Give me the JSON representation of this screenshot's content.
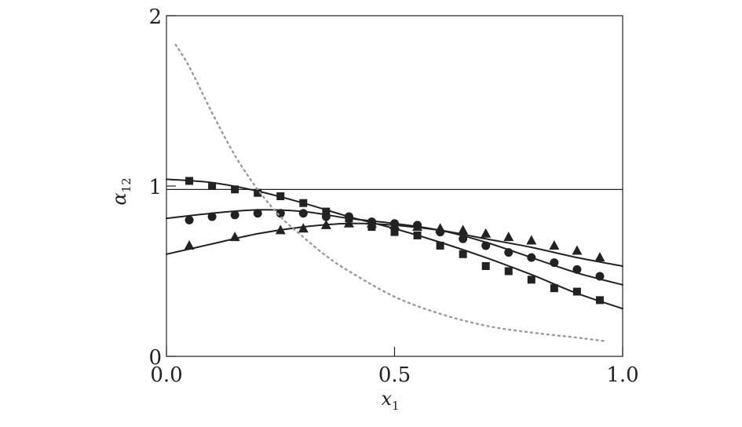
{
  "chart_data": {
    "type": "line",
    "xlabel": {
      "main": "x",
      "sub": "1"
    },
    "ylabel": {
      "main": "α",
      "sub": "12"
    },
    "xlim": [
      0,
      1
    ],
    "ylim": [
      0,
      2
    ],
    "x_ticks": [
      "0.0",
      "0.5",
      "1.0"
    ],
    "y_ticks": [
      "0",
      "1",
      "2"
    ],
    "reference_line_y": 0.98,
    "grid": false,
    "legend": "none",
    "series": [
      {
        "marker": "square",
        "fit": [
          [
            0,
            1.04
          ],
          [
            0.1,
            1.02
          ],
          [
            0.2,
            0.97
          ],
          [
            0.3,
            0.9
          ],
          [
            0.4,
            0.82
          ],
          [
            0.5,
            0.75
          ],
          [
            0.6,
            0.67
          ],
          [
            0.7,
            0.58
          ],
          [
            0.8,
            0.48
          ],
          [
            0.9,
            0.37
          ],
          [
            1.0,
            0.28
          ]
        ],
        "points": [
          [
            0.05,
            1.03
          ],
          [
            0.1,
            1.0
          ],
          [
            0.15,
            0.98
          ],
          [
            0.2,
            0.96
          ],
          [
            0.25,
            0.94
          ],
          [
            0.3,
            0.9
          ],
          [
            0.35,
            0.85
          ],
          [
            0.4,
            0.81
          ],
          [
            0.45,
            0.76
          ],
          [
            0.5,
            0.73
          ],
          [
            0.55,
            0.71
          ],
          [
            0.6,
            0.65
          ],
          [
            0.65,
            0.6
          ],
          [
            0.7,
            0.53
          ],
          [
            0.75,
            0.5
          ],
          [
            0.8,
            0.45
          ],
          [
            0.85,
            0.4
          ],
          [
            0.9,
            0.38
          ],
          [
            0.95,
            0.33
          ]
        ]
      },
      {
        "marker": "circle",
        "fit": [
          [
            0,
            0.81
          ],
          [
            0.1,
            0.84
          ],
          [
            0.2,
            0.86
          ],
          [
            0.3,
            0.85
          ],
          [
            0.4,
            0.81
          ],
          [
            0.5,
            0.78
          ],
          [
            0.6,
            0.74
          ],
          [
            0.7,
            0.67
          ],
          [
            0.8,
            0.58
          ],
          [
            0.9,
            0.49
          ],
          [
            1.0,
            0.42
          ]
        ],
        "points": [
          [
            0.05,
            0.8
          ],
          [
            0.1,
            0.82
          ],
          [
            0.15,
            0.83
          ],
          [
            0.2,
            0.84
          ],
          [
            0.25,
            0.84
          ],
          [
            0.3,
            0.84
          ],
          [
            0.35,
            0.82
          ],
          [
            0.4,
            0.82
          ],
          [
            0.45,
            0.79
          ],
          [
            0.5,
            0.78
          ],
          [
            0.55,
            0.77
          ],
          [
            0.6,
            0.73
          ],
          [
            0.65,
            0.69
          ],
          [
            0.7,
            0.65
          ],
          [
            0.75,
            0.61
          ],
          [
            0.8,
            0.58
          ],
          [
            0.85,
            0.55
          ],
          [
            0.9,
            0.51
          ],
          [
            0.95,
            0.47
          ]
        ]
      },
      {
        "marker": "triangle",
        "fit": [
          [
            0,
            0.6
          ],
          [
            0.1,
            0.66
          ],
          [
            0.2,
            0.72
          ],
          [
            0.3,
            0.76
          ],
          [
            0.4,
            0.78
          ],
          [
            0.5,
            0.77
          ],
          [
            0.6,
            0.74
          ],
          [
            0.7,
            0.69
          ],
          [
            0.8,
            0.64
          ],
          [
            0.9,
            0.58
          ],
          [
            1.0,
            0.53
          ]
        ],
        "points": [
          [
            0.05,
            0.65
          ],
          [
            0.15,
            0.7
          ],
          [
            0.25,
            0.74
          ],
          [
            0.3,
            0.75
          ],
          [
            0.35,
            0.77
          ],
          [
            0.4,
            0.78
          ],
          [
            0.45,
            0.78
          ],
          [
            0.5,
            0.77
          ],
          [
            0.55,
            0.76
          ],
          [
            0.6,
            0.75
          ],
          [
            0.65,
            0.74
          ],
          [
            0.7,
            0.72
          ],
          [
            0.75,
            0.7
          ],
          [
            0.8,
            0.68
          ],
          [
            0.85,
            0.65
          ],
          [
            0.9,
            0.62
          ],
          [
            0.95,
            0.58
          ]
        ]
      },
      {
        "marker": "none",
        "style": "dotted",
        "fit": [
          [
            0.02,
            1.83
          ],
          [
            0.05,
            1.7
          ],
          [
            0.1,
            1.43
          ],
          [
            0.15,
            1.18
          ],
          [
            0.2,
            0.98
          ],
          [
            0.25,
            0.82
          ],
          [
            0.3,
            0.7
          ],
          [
            0.35,
            0.59
          ],
          [
            0.4,
            0.5
          ],
          [
            0.5,
            0.35
          ],
          [
            0.6,
            0.25
          ],
          [
            0.7,
            0.18
          ],
          [
            0.8,
            0.14
          ],
          [
            0.9,
            0.11
          ],
          [
            0.96,
            0.09
          ]
        ],
        "points": []
      }
    ],
    "colors": {
      "axis": "#222222",
      "series": "#222222",
      "dotted": "#999999"
    }
  }
}
